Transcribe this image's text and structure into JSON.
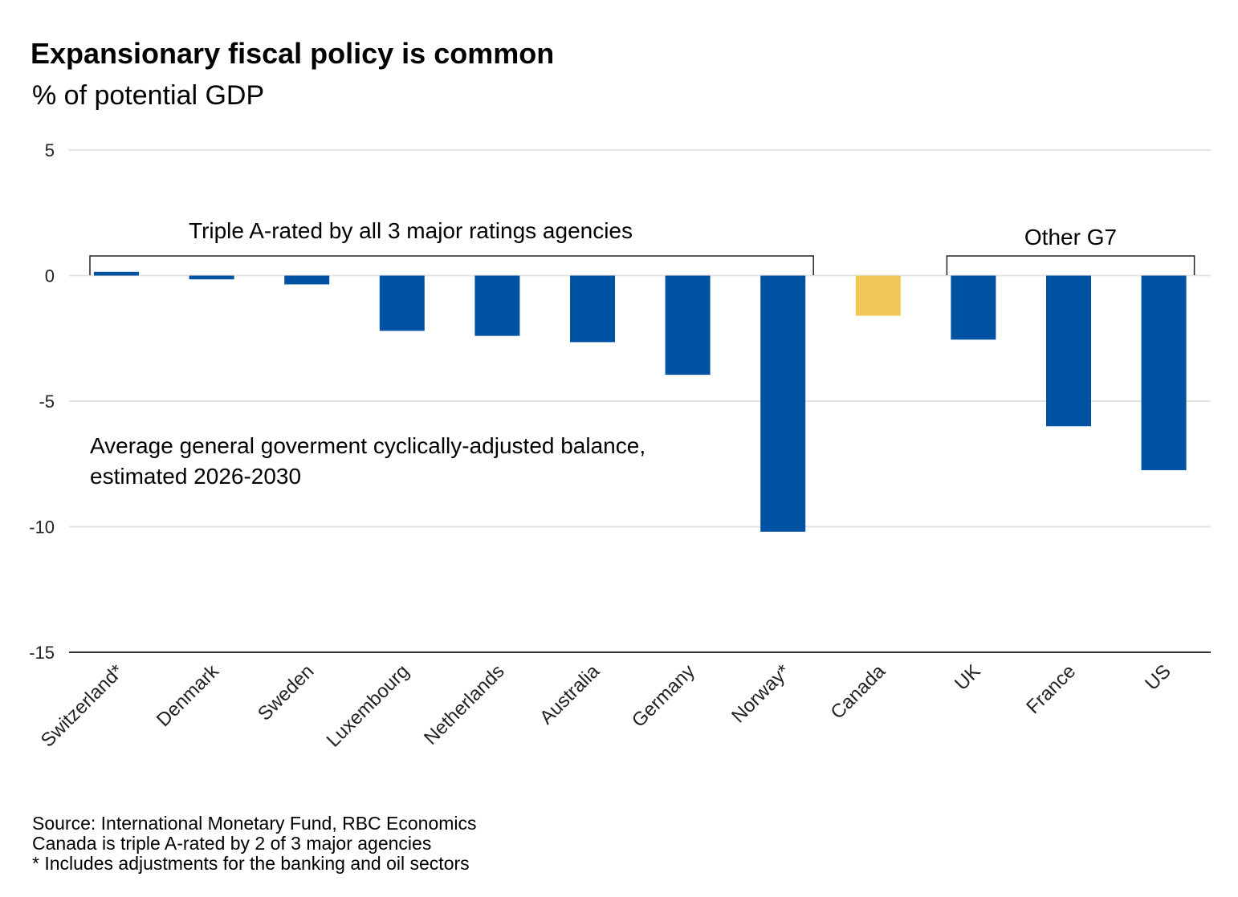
{
  "chart_data": {
    "type": "bar",
    "title": "Expansionary fiscal policy is common",
    "subtitle": "% of potential GDP",
    "xlabel": "",
    "ylabel": "% of potential GDP",
    "ylim": [
      -15,
      5
    ],
    "yticks": [
      5,
      0,
      -5,
      -10,
      -15
    ],
    "grid": true,
    "categories": [
      "Switzerland*",
      "Denmark",
      "Sweden",
      "Luxembourg",
      "Netherlands",
      "Australia",
      "Germany",
      "Norway*",
      "Canada",
      "UK",
      "France",
      "US"
    ],
    "values": [
      0.15,
      -0.15,
      -0.35,
      -2.2,
      -2.4,
      -2.65,
      -3.95,
      -10.2,
      -1.6,
      -2.55,
      -6.0,
      -7.75
    ],
    "highlight": [
      "default",
      "default",
      "default",
      "default",
      "default",
      "default",
      "default",
      "default",
      "highlight",
      "default",
      "default",
      "default"
    ],
    "colors": {
      "default": "#0052a3",
      "highlight": "#f0c85a",
      "grid": "#e3e3e3",
      "axis": "#333333",
      "bracket": "#222222"
    },
    "annotations": {
      "group1": {
        "label": "Triple A-rated by all 3 major ratings agencies",
        "from": "Switzerland*",
        "to": "Norway*"
      },
      "group2": {
        "label": "Other G7",
        "from": "UK",
        "to": "US"
      },
      "note_line1": "Average general goverment cyclically-adjusted balance,",
      "note_line2": "estimated 2026-2030"
    }
  },
  "footer": {
    "source": "Source: International Monetary Fund, RBC Economics",
    "note1": "Canada is triple A-rated by 2 of 3 major agencies",
    "note2": "* Includes adjustments for the banking and oil sectors"
  }
}
